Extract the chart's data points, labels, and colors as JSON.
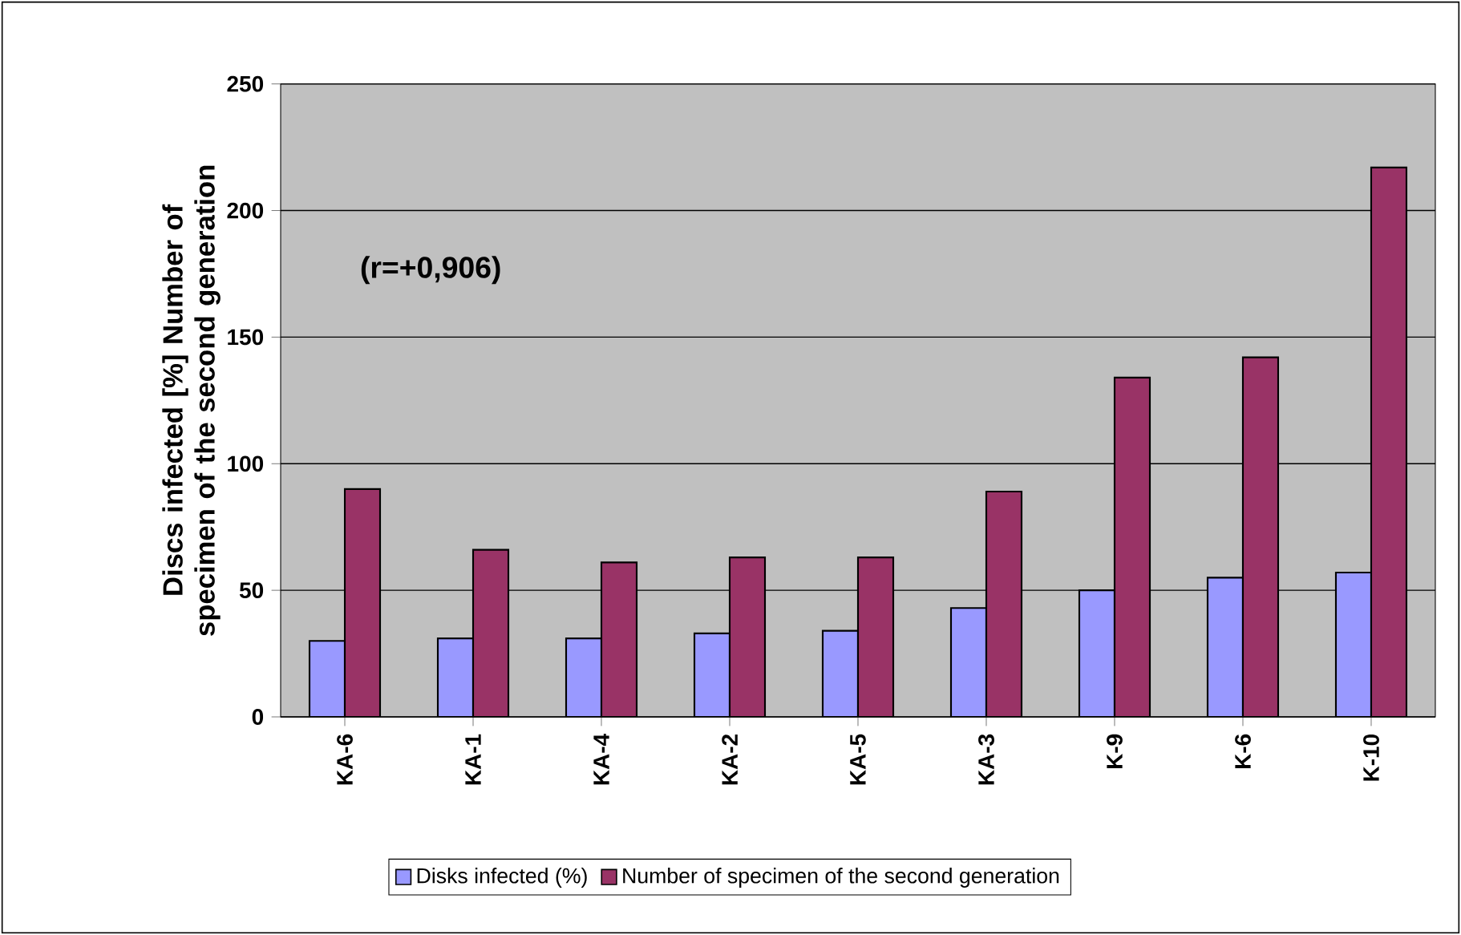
{
  "chart_data": {
    "type": "bar",
    "categories": [
      "KA-6",
      "KA-1",
      "KA-4",
      "KA-2",
      "KA-5",
      "KA-3",
      "K-9",
      "K-6",
      "K-10"
    ],
    "series": [
      {
        "name": "Disks infected (%)",
        "color": "#9999ff",
        "values": [
          30,
          31,
          31,
          33,
          34,
          43,
          50,
          55,
          57
        ]
      },
      {
        "name": "Number of specimen of the second generation",
        "color": "#993366",
        "values": [
          90,
          66,
          61,
          63,
          63,
          89,
          134,
          142,
          217
        ]
      }
    ],
    "ylabel": "Discs infected [%] Number of specimen of the second generation",
    "ylim": [
      0,
      250
    ],
    "yticks": [
      0,
      50,
      100,
      150,
      200,
      250
    ],
    "annotations": [
      "(r=+0,906)"
    ],
    "grid": "y",
    "legend": "bottom"
  }
}
